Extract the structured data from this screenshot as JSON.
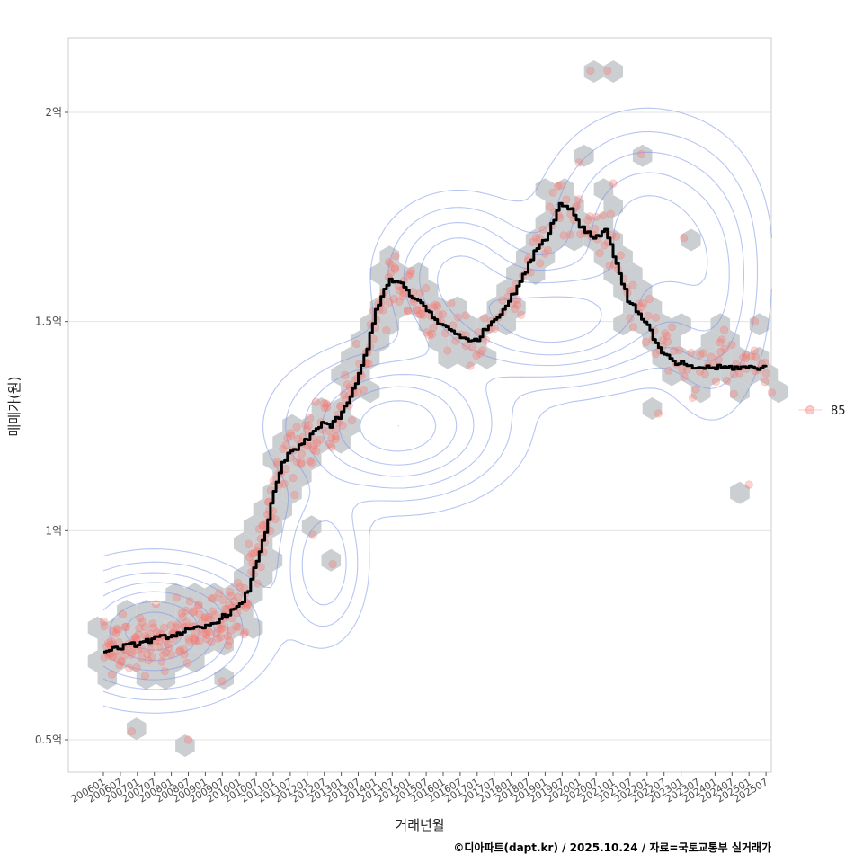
{
  "chart_data": {
    "type": "scatter",
    "title": "",
    "xlabel": "거래년월",
    "ylabel": "매매가(원)",
    "x_start": "2006-01",
    "x_end": "2025-10",
    "ylim": [
      0.43,
      2.18
    ],
    "y_ticks": [
      {
        "value": 0.5,
        "label": "0.5억"
      },
      {
        "value": 1.0,
        "label": "1억"
      },
      {
        "value": 1.5,
        "label": "1.5억"
      },
      {
        "value": 2.0,
        "label": "2억"
      }
    ],
    "x_ticks": [
      "200601",
      "200607",
      "200701",
      "200707",
      "200801",
      "200807",
      "200901",
      "200907",
      "201001",
      "201007",
      "201101",
      "201107",
      "201201",
      "201207",
      "201301",
      "201307",
      "201401",
      "201407",
      "201501",
      "201507",
      "201601",
      "201607",
      "201701",
      "201707",
      "201801",
      "201807",
      "201901",
      "201907",
      "202001",
      "202007",
      "202101",
      "202107",
      "202201",
      "202207",
      "202301",
      "202307",
      "202401",
      "202407",
      "202501",
      "202507"
    ],
    "legend": [
      {
        "label": "85",
        "color": "#f8766d"
      }
    ],
    "legend_position": "right",
    "grid": true,
    "trend_line": {
      "name": "moving average",
      "x": [
        "2006-01",
        "2006-06",
        "2007-01",
        "2007-06",
        "2008-01",
        "2008-06",
        "2009-01",
        "2009-06",
        "2010-01",
        "2010-04",
        "2010-07",
        "2010-10",
        "2011-01",
        "2011-04",
        "2011-07",
        "2011-10",
        "2012-01",
        "2012-06",
        "2012-09",
        "2013-01",
        "2013-06",
        "2013-10",
        "2014-01",
        "2014-06",
        "2014-10",
        "2015-01",
        "2015-06",
        "2015-10",
        "2016-01",
        "2016-06",
        "2016-10",
        "2017-01",
        "2017-06",
        "2017-10",
        "2018-01",
        "2018-06",
        "2018-09",
        "2019-01",
        "2019-06",
        "2019-10",
        "2020-01",
        "2020-06",
        "2020-10",
        "2021-01",
        "2021-06",
        "2021-10",
        "2022-01",
        "2022-06",
        "2022-08",
        "2022-10",
        "2023-01",
        "2023-03",
        "2023-05",
        "2023-08",
        "2023-11",
        "2024-02",
        "2024-06",
        "2024-10",
        "2025-01",
        "2025-04",
        "2025-07"
      ],
      "y": [
        0.71,
        0.72,
        0.73,
        0.74,
        0.75,
        0.76,
        0.77,
        0.79,
        0.82,
        0.86,
        0.93,
        1.0,
        1.09,
        1.16,
        1.19,
        1.2,
        1.22,
        1.26,
        1.25,
        1.28,
        1.35,
        1.44,
        1.53,
        1.6,
        1.59,
        1.56,
        1.54,
        1.5,
        1.49,
        1.47,
        1.45,
        1.46,
        1.5,
        1.53,
        1.56,
        1.62,
        1.67,
        1.7,
        1.78,
        1.77,
        1.73,
        1.7,
        1.72,
        1.66,
        1.55,
        1.52,
        1.49,
        1.42,
        1.42,
        1.4,
        1.4,
        1.39,
        1.39,
        1.39,
        1.39,
        1.39,
        1.39,
        1.39,
        1.39,
        1.39,
        1.39
      ]
    },
    "hexbin_note": "gray hexagon density bins behind points",
    "density_contours": "blue 2D density contour lines",
    "points_count_visible": "about 400 transactions, 85㎡ type"
  },
  "caption": "©디아파트(dapt.kr) / 2025.10.24 / 자료=국토교통부 실거래가"
}
